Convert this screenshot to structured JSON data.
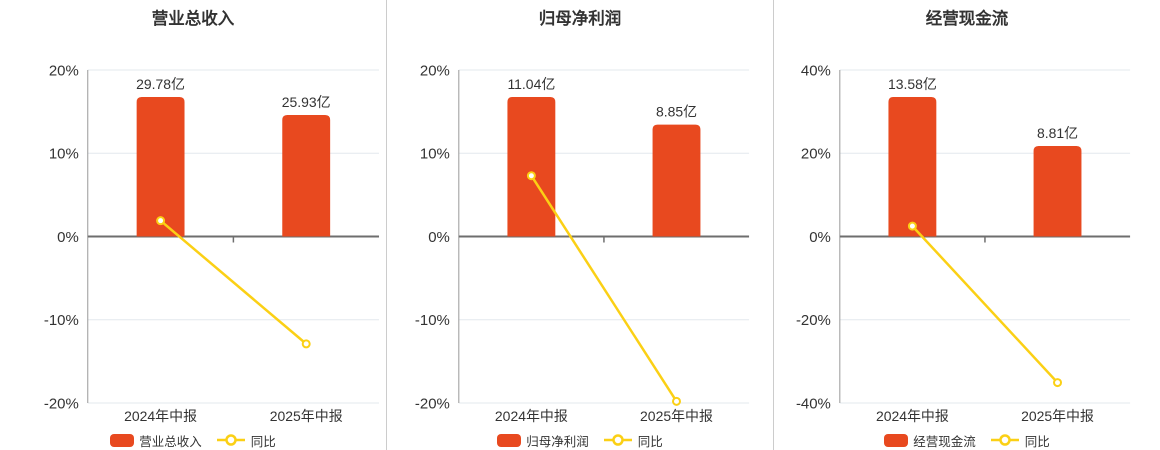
{
  "colors": {
    "bar": "#e8491f",
    "line": "#fbd015",
    "grid": "#e3e8ee",
    "zero_axis": "#6e6e6e",
    "axis_line": "#999999",
    "text": "#333333",
    "divider": "#cccccc",
    "background": "#ffffff"
  },
  "chart_data": [
    {
      "type": "bar",
      "title": "营业总收入",
      "categories": [
        "2024年中报",
        "2025年中报"
      ],
      "series": [
        {
          "name": "营业总收入",
          "type": "bar",
          "unit": "亿",
          "values": [
            29.78,
            25.93
          ],
          "labels": [
            "29.78亿",
            "25.93亿"
          ],
          "color": "#e8491f"
        },
        {
          "name": "同比",
          "type": "line",
          "unit": "%",
          "values": [
            1.9,
            -12.9
          ],
          "color": "#fbd015"
        }
      ],
      "y_axis": {
        "min": -20,
        "max": 20,
        "ticks": [
          "20%",
          "10%",
          "0%",
          "-10%",
          "-20%"
        ]
      },
      "grid": true,
      "legend_position": "bottom"
    },
    {
      "type": "bar",
      "title": "归母净利润",
      "categories": [
        "2024年中报",
        "2025年中报"
      ],
      "series": [
        {
          "name": "归母净利润",
          "type": "bar",
          "unit": "亿",
          "values": [
            11.04,
            8.85
          ],
          "labels": [
            "11.04亿",
            "8.85亿"
          ],
          "color": "#e8491f"
        },
        {
          "name": "同比",
          "type": "line",
          "unit": "%",
          "values": [
            7.3,
            -19.8
          ],
          "color": "#fbd015"
        }
      ],
      "y_axis": {
        "min": -20,
        "max": 20,
        "ticks": [
          "20%",
          "10%",
          "0%",
          "-10%",
          "-20%"
        ]
      },
      "grid": true,
      "legend_position": "bottom"
    },
    {
      "type": "bar",
      "title": "经营现金流",
      "categories": [
        "2024年中报",
        "2025年中报"
      ],
      "series": [
        {
          "name": "经营现金流",
          "type": "bar",
          "unit": "亿",
          "values": [
            13.58,
            8.81
          ],
          "labels": [
            "13.58亿",
            "8.81亿"
          ],
          "color": "#e8491f"
        },
        {
          "name": "同比",
          "type": "line",
          "unit": "%",
          "values": [
            2.5,
            -35.1
          ],
          "color": "#fbd015"
        }
      ],
      "y_axis": {
        "min": -40,
        "max": 40,
        "ticks": [
          "40%",
          "20%",
          "0%",
          "-20%",
          "-40%"
        ]
      },
      "grid": true,
      "legend_position": "bottom"
    }
  ]
}
